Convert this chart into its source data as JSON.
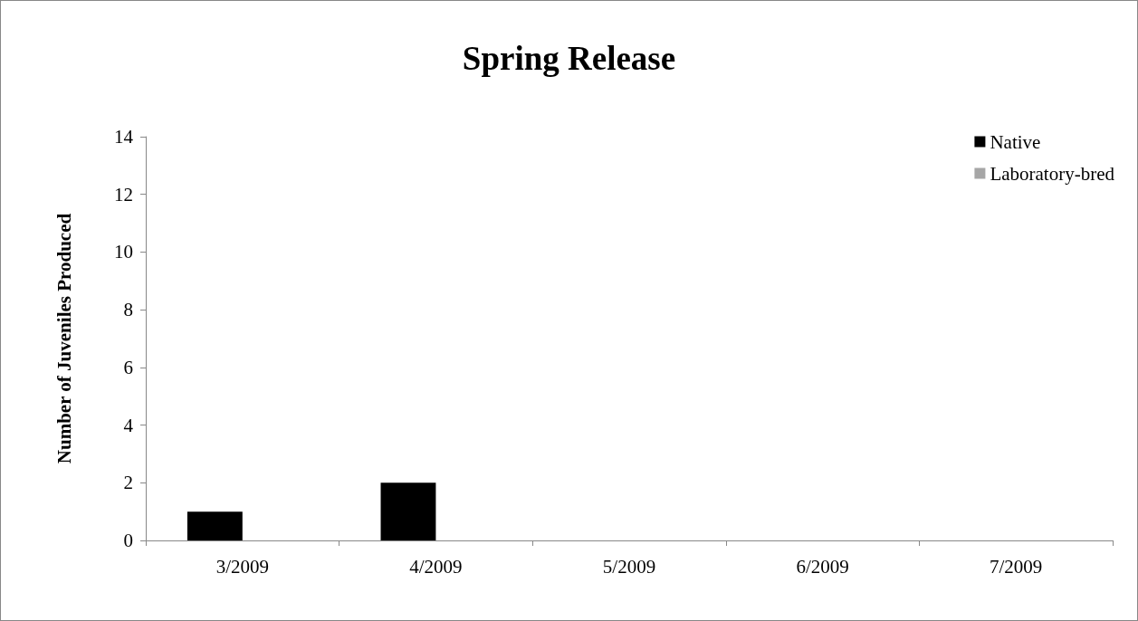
{
  "chart_data": {
    "type": "bar",
    "title": "Spring Release",
    "ylabel": "Number of Juveniles Produced",
    "categories": [
      "3/2009",
      "4/2009",
      "5/2009",
      "6/2009",
      "7/2009"
    ],
    "series": [
      {
        "name": "Native",
        "color": "#000000",
        "values": [
          1,
          2,
          0,
          0,
          0
        ]
      },
      {
        "name": "Laboratory-bred",
        "color": "#a6a6a6",
        "values": [
          0,
          0,
          0,
          0,
          0
        ]
      }
    ],
    "ylim": [
      0,
      14
    ],
    "yticks": [
      0,
      2,
      4,
      6,
      8,
      10,
      12,
      14
    ],
    "grid": false,
    "legend": "top right"
  }
}
